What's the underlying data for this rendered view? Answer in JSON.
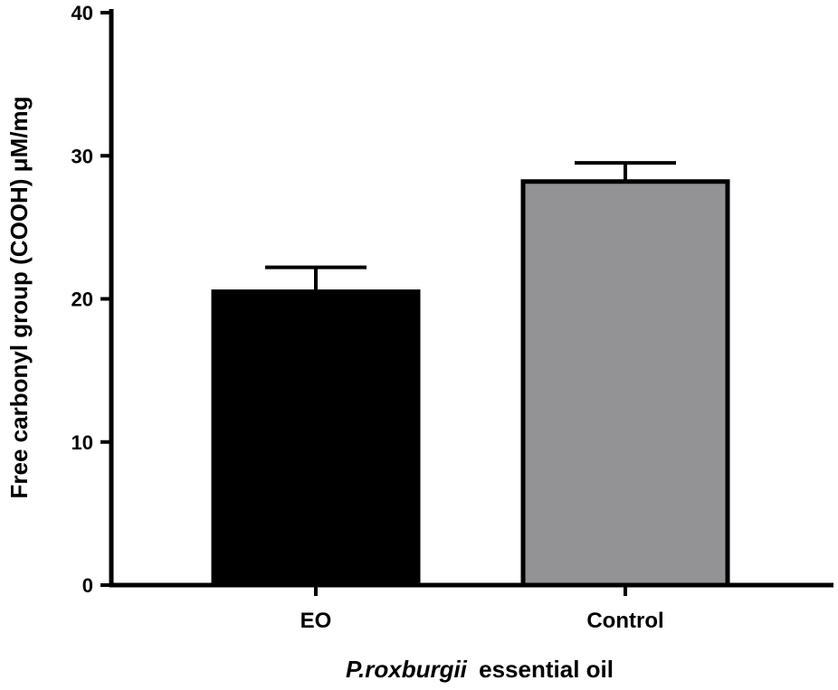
{
  "chart_data": {
    "type": "bar",
    "categories": [
      "EO",
      "Control"
    ],
    "values": [
      20.5,
      28.2
    ],
    "error_plus": [
      1.7,
      1.3
    ],
    "bar_colors": [
      "#000000",
      "#939396"
    ],
    "ylim": [
      0,
      40
    ],
    "yticks": [
      "0",
      "10",
      "20",
      "30",
      "40"
    ],
    "ylabel": "Free carbonyl group (COOH) μM/mg",
    "xlabel_italic": "P.roxburgii",
    "xlabel_rest": "essential oil",
    "grid": false
  }
}
